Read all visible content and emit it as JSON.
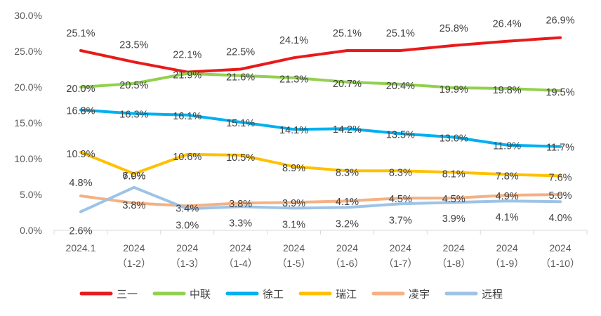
{
  "chart_data": {
    "type": "line",
    "categories": [
      [
        "2024.1"
      ],
      [
        "2024",
        "（1-2）"
      ],
      [
        "2024",
        "（1-3）"
      ],
      [
        "2024",
        "（1-4）"
      ],
      [
        "2024",
        "（1-5）"
      ],
      [
        "2024",
        "（1-6）"
      ],
      [
        "2024",
        "（1-7）"
      ],
      [
        "2024",
        "（1-8）"
      ],
      [
        "2024",
        "（1-9）"
      ],
      [
        "2024",
        "（1-10）"
      ]
    ],
    "ylim": [
      0,
      30
    ],
    "y_ticks": [
      "0.0%",
      "5.0%",
      "10.0%",
      "15.0%",
      "20.0%",
      "25.0%",
      "30.0%"
    ],
    "gridlines": false,
    "legend_position": "bottom",
    "series": [
      {
        "name": "三一",
        "color": "#e81a1a",
        "values": [
          25.1,
          23.5,
          22.1,
          22.5,
          24.1,
          25.1,
          25.1,
          25.8,
          26.4,
          26.9
        ],
        "labels": [
          "25.1%",
          "23.5%",
          "22.1%",
          "22.5%",
          "24.1%",
          "25.1%",
          "25.1%",
          "25.8%",
          "26.4%",
          "26.9%"
        ]
      },
      {
        "name": "中联",
        "color": "#92d050",
        "values": [
          20.0,
          20.5,
          21.9,
          21.6,
          21.3,
          20.7,
          20.4,
          19.9,
          19.8,
          19.5
        ],
        "labels": [
          "20.0%",
          "20.5%",
          "21.9%",
          "21.6%",
          "21.3%",
          "20.7%",
          "20.4%",
          "19.9%",
          "19.8%",
          "19.5%"
        ]
      },
      {
        "name": "徐工",
        "color": "#00b0f0",
        "values": [
          16.8,
          16.3,
          16.1,
          15.1,
          14.1,
          14.2,
          13.5,
          13.0,
          11.9,
          11.7
        ],
        "labels": [
          "16.8%",
          "16.3%",
          "16.1%",
          "15.1%",
          "14.1%",
          "14.2%",
          "13.5%",
          "13.0%",
          "11.9%",
          "11.7%"
        ]
      },
      {
        "name": "瑞江",
        "color": "#ffc000",
        "values": [
          10.9,
          7.9,
          10.6,
          10.5,
          8.9,
          8.3,
          8.3,
          8.1,
          7.8,
          7.6
        ],
        "labels": [
          "10.9%",
          "7.9%",
          "10.6%",
          "10.5%",
          "8.9%",
          "8.3%",
          "8.3%",
          "8.1%",
          "7.8%",
          "7.6%"
        ]
      },
      {
        "name": "凌宇",
        "color": "#f4b183",
        "values": [
          4.8,
          3.8,
          3.4,
          3.8,
          3.9,
          4.1,
          4.5,
          4.5,
          4.9,
          5.0
        ],
        "labels": [
          "4.8%",
          "3.8%",
          "3.4%",
          "3.8%",
          "3.9%",
          "4.1%",
          "4.5%",
          "4.5%",
          "4.9%",
          "5.0%"
        ]
      },
      {
        "name": "远程",
        "color": "#9dc3e6",
        "values": [
          2.6,
          6.0,
          3.0,
          3.3,
          3.1,
          3.2,
          3.7,
          3.9,
          4.1,
          4.0
        ],
        "labels": [
          "2.6%",
          "6.0%",
          "3.0%",
          "3.3%",
          "3.1%",
          "3.2%",
          "3.7%",
          "3.9%",
          "4.1%",
          "4.0%"
        ]
      }
    ]
  }
}
